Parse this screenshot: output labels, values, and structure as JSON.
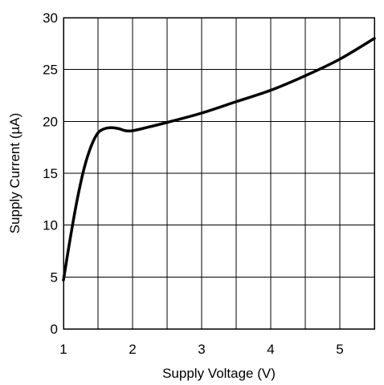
{
  "chart_data": {
    "type": "line",
    "title": "",
    "xlabel": "Supply Voltage (V)",
    "ylabel": "Supply Current (µA)",
    "xlim": [
      1,
      5.5
    ],
    "ylim": [
      0,
      30
    ],
    "xticks": [
      1,
      2,
      3,
      4,
      5
    ],
    "xtick_labels": [
      "1",
      "2",
      "3",
      "4",
      "5"
    ],
    "yticks": [
      0,
      5,
      10,
      15,
      20,
      25,
      30
    ],
    "ytick_labels": [
      "0",
      "5",
      "10",
      "15",
      "20",
      "25",
      "30"
    ],
    "x_gridlines": [
      1,
      1.5,
      2,
      2.5,
      3,
      3.5,
      4,
      4.5,
      5,
      5.5
    ],
    "y_gridlines": [
      0,
      5,
      10,
      15,
      20,
      25,
      30
    ],
    "grid": true,
    "legend": "none",
    "line_color": "#000000",
    "series": [
      {
        "x": [
          1.0,
          1.1,
          1.2,
          1.3,
          1.4,
          1.5,
          1.6,
          1.7,
          1.8,
          1.9,
          2.0,
          2.2,
          2.5,
          3.0,
          3.5,
          4.0,
          4.5,
          5.0,
          5.5
        ],
        "y": [
          4.7,
          8.8,
          12.5,
          15.5,
          17.6,
          18.9,
          19.3,
          19.4,
          19.3,
          19.1,
          19.1,
          19.4,
          19.9,
          20.8,
          21.9,
          23.0,
          24.4,
          26.0,
          28.0
        ]
      }
    ]
  }
}
